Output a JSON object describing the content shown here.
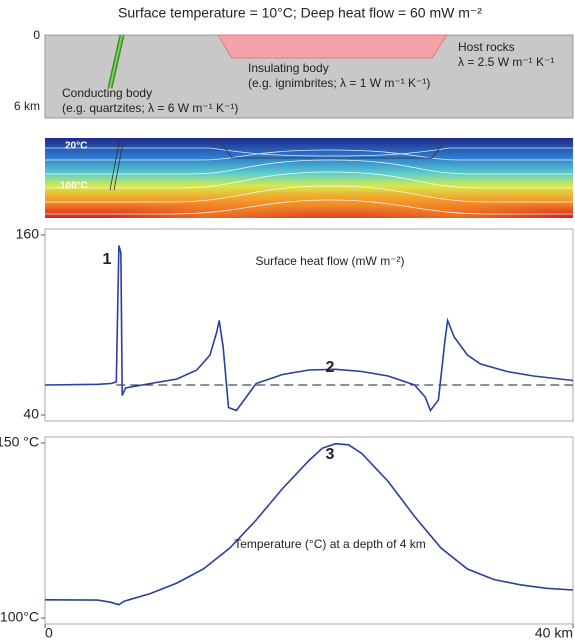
{
  "title": "Surface temperature = 10°C;  Deep heat flow = 60 mW m⁻²",
  "section": {
    "depth_top": "0",
    "depth_bottom": "6 km",
    "conducting_body": "Conducting body",
    "conducting_note": "(e.g. quartzites; λ = 6 W m⁻¹ K⁻¹)",
    "insulating_body": "Insulating body",
    "insulating_note": "(e.g. ignimbrites; λ = 1 W m⁻¹ K⁻¹)",
    "host_rocks": "Host rocks",
    "host_note": "λ = 2.5 W m⁻¹ K⁻¹"
  },
  "isotherms": {
    "labels": [
      "20°C",
      "100°C"
    ]
  },
  "chart_data": [
    {
      "type": "line",
      "title": "Surface heat flow  (mW m⁻²)",
      "color": "#2b3f9e",
      "x": [
        0,
        4,
        5,
        5.4,
        5.6,
        5.75,
        5.85,
        6.1,
        8,
        10,
        11.5,
        12.5,
        13,
        13.2,
        13.5,
        13.9,
        14.5,
        15.5,
        16,
        18,
        20,
        22,
        24,
        26,
        28,
        28.8,
        29.2,
        29.8,
        30.3,
        30.5,
        31,
        32,
        33,
        35,
        37,
        40
      ],
      "values": [
        60,
        60.5,
        61,
        62,
        153,
        148,
        53,
        58,
        61,
        64,
        70,
        80,
        95,
        103,
        85,
        45,
        43,
        55,
        61,
        67,
        70,
        70.5,
        69,
        66,
        60,
        52,
        43,
        50,
        90,
        103,
        92,
        80,
        74,
        69,
        66,
        63
      ],
      "baseline": 60,
      "annotations": [
        "1",
        "2"
      ],
      "xlim": [
        0,
        40
      ],
      "ylim": [
        40,
        160
      ],
      "yticks": [
        40,
        160
      ]
    },
    {
      "type": "line",
      "title": "Temperature (°C) at a depth of 4 km",
      "color": "#2b3f9e",
      "x": [
        0,
        4,
        5,
        5.6,
        6,
        8,
        10,
        12,
        14,
        16,
        18,
        20,
        21,
        22,
        23,
        24,
        26,
        28,
        30,
        32,
        34,
        36,
        38,
        40
      ],
      "values": [
        105.2,
        105.1,
        104.5,
        103.8,
        104.8,
        107,
        110,
        114,
        120,
        128,
        137,
        145,
        148.5,
        149.8,
        149.5,
        147,
        139,
        129,
        120,
        114,
        111,
        109.5,
        108.5,
        108
      ],
      "annotations": [
        "3"
      ],
      "xlim": [
        0,
        40
      ],
      "xticks": [
        0,
        {
          "value": 40,
          "label": "40 km"
        }
      ],
      "ylim": [
        100,
        150
      ],
      "yticks": [
        {
          "value": 100,
          "label": "100°C"
        },
        {
          "value": 150,
          "label": "150 °C"
        }
      ]
    }
  ]
}
